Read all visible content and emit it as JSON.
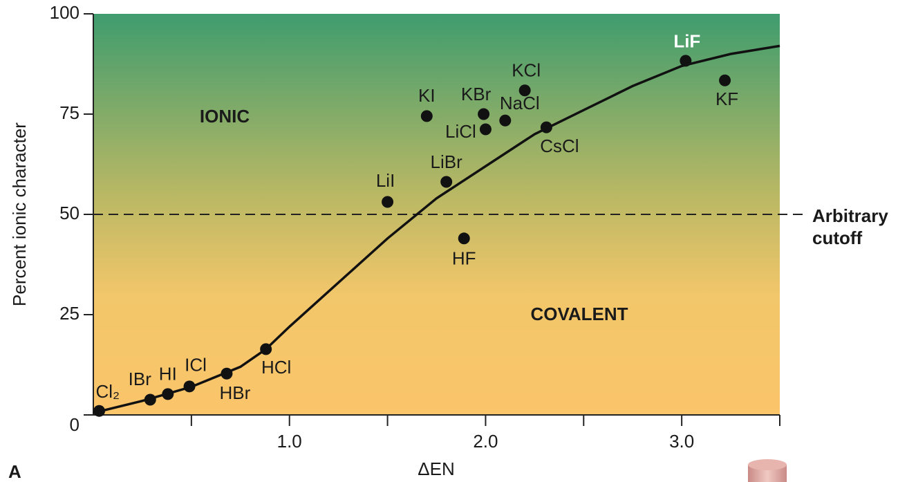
{
  "chart_data": {
    "type": "scatter",
    "xlabel": "ΔEN",
    "ylabel": "Percent ionic character",
    "panel_label": "A",
    "xlim": [
      0,
      3.5
    ],
    "ylim": [
      0,
      100
    ],
    "xticks": [
      {
        "value": 1,
        "label": "1.0"
      },
      {
        "value": 2,
        "label": "2.0"
      },
      {
        "value": 3,
        "label": "3.0"
      }
    ],
    "xminor_ticks": [
      0.5,
      1.5,
      2.5,
      3.5
    ],
    "yticks": [
      0,
      25,
      50,
      75,
      100
    ],
    "points": {
      "color": "#111111",
      "labels": [
        "Cl₂",
        "IBr",
        "HI",
        "ICl",
        "HBr",
        "HCl",
        "LiI",
        "KI",
        "LiBr",
        "HF",
        "KBr",
        "LiCl",
        "NaCl",
        "KCl",
        "CsCl",
        "LiF",
        "KF"
      ],
      "x": [
        0.03,
        0.29,
        0.38,
        0.49,
        0.68,
        0.88,
        1.5,
        1.7,
        1.8,
        1.89,
        1.99,
        2.0,
        2.1,
        2.2,
        2.31,
        3.02,
        3.22
      ],
      "values": [
        1,
        3.8,
        5.2,
        7.1,
        10.3,
        16.4,
        53.1,
        74.5,
        58.1,
        44,
        75,
        71.2,
        73.4,
        80.9,
        71.7,
        88.3,
        83.4
      ]
    },
    "curve": {
      "color": "#111111",
      "x": [
        0,
        0.25,
        0.5,
        0.75,
        0.88,
        1,
        1.25,
        1.5,
        1.75,
        2,
        2.25,
        2.5,
        2.75,
        3,
        3.25,
        3.5
      ],
      "values": [
        0.5,
        3.5,
        7,
        12,
        16.4,
        22,
        33,
        44,
        54,
        62,
        70,
        76,
        82,
        87,
        90,
        92
      ]
    },
    "reference_line": {
      "value": 50,
      "label": [
        "Arbitrary",
        "cutoff"
      ]
    },
    "annotations": [
      "IONIC",
      "COVALENT"
    ]
  }
}
